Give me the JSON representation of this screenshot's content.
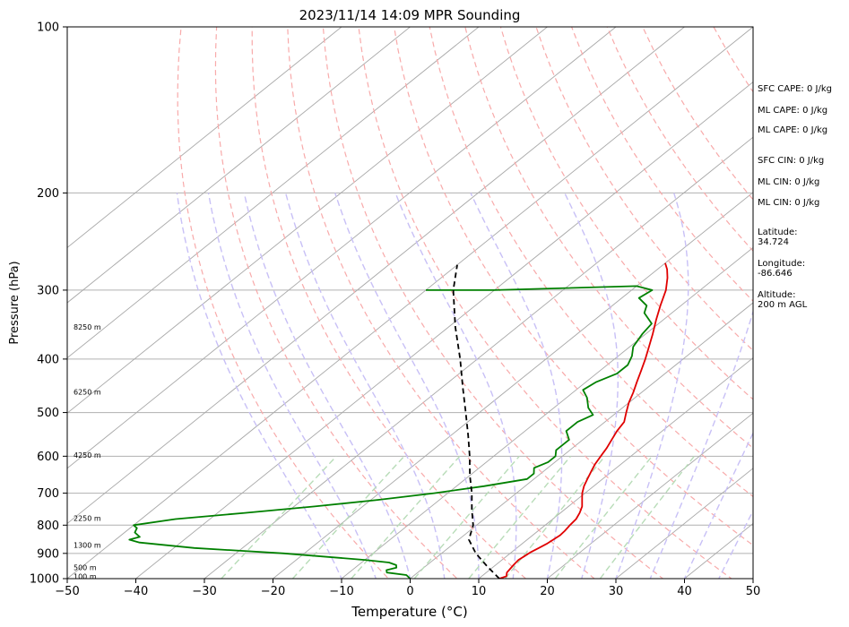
{
  "chart_data": {
    "type": "line",
    "title": "2023/11/14 14:09 MPR Sounding",
    "xlabel": "Temperature (°C)",
    "ylabel": "Pressure (hPa)",
    "xlim": [
      -50,
      50
    ],
    "ylim": [
      1000,
      100
    ],
    "y_scale": "log",
    "grid": true,
    "x_ticks": [
      -50,
      -40,
      -30,
      -20,
      -10,
      0,
      10,
      20,
      30,
      40,
      50
    ],
    "y_ticks": [
      1000,
      900,
      800,
      700,
      600,
      500,
      400,
      300,
      200,
      100
    ],
    "isotherms_c": [
      -110,
      -100,
      -90,
      -80,
      -70,
      -60,
      -50,
      -40,
      -30,
      -20,
      -10,
      0,
      10,
      20,
      30,
      40,
      50
    ],
    "dry_adiabats_theta_k": [
      270,
      280,
      290,
      300,
      310,
      320,
      330,
      340,
      350,
      360,
      370,
      380,
      390,
      400,
      420,
      440,
      460,
      480
    ],
    "moist_adiabats_start_c": [
      -10,
      -5,
      0,
      5,
      10,
      15,
      20,
      25,
      30,
      35,
      40,
      45
    ],
    "mixing_ratio_lines": [
      0.4,
      1,
      2,
      4,
      7,
      10,
      16,
      24
    ],
    "series": [
      {
        "name": "Temperature",
        "color": "#e00000",
        "points": [
          [
            1000,
            13.0
          ],
          [
            990,
            13.6
          ],
          [
            975,
            13.0
          ],
          [
            960,
            12.8
          ],
          [
            945,
            12.6
          ],
          [
            925,
            12.4
          ],
          [
            910,
            12.6
          ],
          [
            895,
            12.8
          ],
          [
            880,
            13.2
          ],
          [
            865,
            13.6
          ],
          [
            850,
            13.8
          ],
          [
            835,
            14.0
          ],
          [
            820,
            13.9
          ],
          [
            800,
            13.6
          ],
          [
            780,
            13.4
          ],
          [
            760,
            12.8
          ],
          [
            740,
            12.0
          ],
          [
            720,
            10.8
          ],
          [
            700,
            9.6
          ],
          [
            680,
            8.6
          ],
          [
            660,
            7.8
          ],
          [
            640,
            7.0
          ],
          [
            620,
            6.2
          ],
          [
            600,
            5.6
          ],
          [
            580,
            5.0
          ],
          [
            560,
            4.2
          ],
          [
            540,
            3.4
          ],
          [
            520,
            2.8
          ],
          [
            500,
            1.4
          ],
          [
            480,
            0.0
          ],
          [
            460,
            -1.2
          ],
          [
            440,
            -2.6
          ],
          [
            420,
            -4.0
          ],
          [
            400,
            -5.5
          ],
          [
            380,
            -7.2
          ],
          [
            360,
            -9.0
          ],
          [
            340,
            -11.0
          ],
          [
            320,
            -13.0
          ],
          [
            300,
            -15.0
          ],
          [
            285,
            -17.0
          ],
          [
            275,
            -18.6
          ],
          [
            268,
            -20.0
          ]
        ]
      },
      {
        "name": "Dewpoint",
        "color": "#008000",
        "points": [
          [
            1000,
            0.0
          ],
          [
            985,
            -1.2
          ],
          [
            975,
            -4.5
          ],
          [
            965,
            -5.0
          ],
          [
            955,
            -4.0
          ],
          [
            945,
            -4.5
          ],
          [
            935,
            -6.0
          ],
          [
            925,
            -10.0
          ],
          [
            900,
            -23.0
          ],
          [
            880,
            -37.0
          ],
          [
            860,
            -46.0
          ],
          [
            850,
            -48.0
          ],
          [
            840,
            -47.0
          ],
          [
            825,
            -48.5
          ],
          [
            810,
            -49.0
          ],
          [
            800,
            -50.0
          ],
          [
            780,
            -45.0
          ],
          [
            760,
            -36.0
          ],
          [
            740,
            -27.0
          ],
          [
            720,
            -19.0
          ],
          [
            700,
            -12.0
          ],
          [
            680,
            -6.0
          ],
          [
            660,
            -1.0
          ],
          [
            645,
            -1.0
          ],
          [
            630,
            -2.0
          ],
          [
            615,
            -1.0
          ],
          [
            600,
            -1.0
          ],
          [
            585,
            -2.0
          ],
          [
            560,
            -2.0
          ],
          [
            540,
            -4.0
          ],
          [
            520,
            -4.0
          ],
          [
            505,
            -3.0
          ],
          [
            490,
            -5.0
          ],
          [
            470,
            -7.0
          ],
          [
            455,
            -9.0
          ],
          [
            440,
            -8.5
          ],
          [
            425,
            -7.0
          ],
          [
            410,
            -7.0
          ],
          [
            395,
            -8.0
          ],
          [
            380,
            -9.5
          ],
          [
            360,
            -10.5
          ],
          [
            345,
            -11.0
          ],
          [
            330,
            -14.0
          ],
          [
            320,
            -15.0
          ],
          [
            310,
            -17.5
          ],
          [
            300,
            -17.0
          ],
          [
            295,
            -20.0
          ],
          [
            300,
            -40.0
          ],
          [
            300,
            -50.0
          ]
        ]
      },
      {
        "name": "Parcel Path",
        "color": "#000000",
        "style": "dashed",
        "points": [
          [
            1000,
            13.0
          ],
          [
            950,
            9.0
          ],
          [
            900,
            5.0
          ],
          [
            850,
            1.5
          ],
          [
            800,
            -0.5
          ],
          [
            750,
            -3.5
          ],
          [
            700,
            -6.5
          ],
          [
            650,
            -10.0
          ],
          [
            600,
            -13.5
          ],
          [
            550,
            -17.5
          ],
          [
            500,
            -22.0
          ],
          [
            450,
            -27.0
          ],
          [
            400,
            -32.5
          ],
          [
            350,
            -39.0
          ],
          [
            300,
            -46.0
          ],
          [
            270,
            -50.0
          ]
        ]
      }
    ],
    "height_labels": [
      {
        "label": "100 m",
        "p": 990
      },
      {
        "label": "500 m",
        "p": 955
      },
      {
        "label": "1300 m",
        "p": 870
      },
      {
        "label": "2250 m",
        "p": 777
      },
      {
        "label": "4250 m",
        "p": 597
      },
      {
        "label": "6250 m",
        "p": 459
      },
      {
        "label": "8250 m",
        "p": 350
      }
    ],
    "annotations": [
      {
        "label": "SFC CAPE: 0 J/kg"
      },
      {
        "label": "ML CAPE: 0 J/kg"
      },
      {
        "label": "ML CAPE: 0 J/kg"
      },
      {
        "label": "SFC CIN: 0 J/kg"
      },
      {
        "label": "ML CIN: 0 J/kg"
      },
      {
        "label": "ML CIN: 0 J/kg"
      },
      {
        "label": "Latitude:",
        "label2": "34.724"
      },
      {
        "label": "Longitude:",
        "label2": "-86.646"
      },
      {
        "label": "Altitude:",
        "label2": "200 m AGL"
      }
    ]
  }
}
